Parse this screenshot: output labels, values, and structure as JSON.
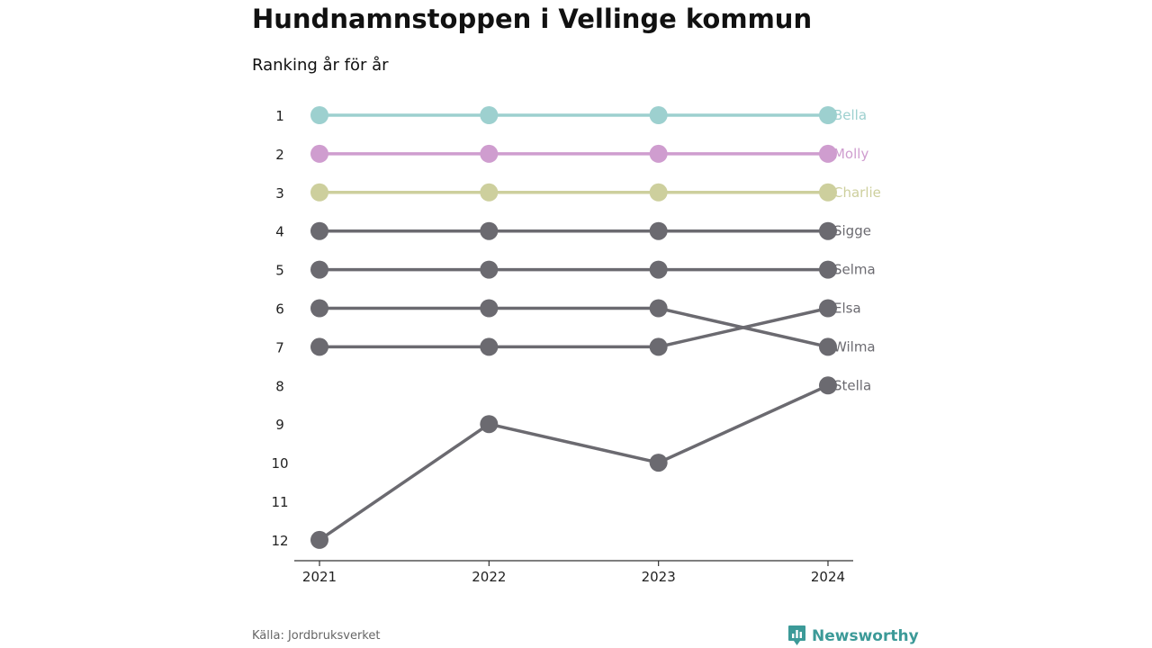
{
  "title": "Hundnamnstoppen i Vellinge kommun",
  "subtitle": "Ranking år för år",
  "source": "Källa: Jordbruksverket",
  "brand": {
    "name": "Newsworthy",
    "icon": "newsworthy-logo-icon",
    "color": "#3c9a98"
  },
  "chart_data": {
    "type": "line",
    "subtype": "bump",
    "x": [
      "2021",
      "2022",
      "2023",
      "2024"
    ],
    "y_ticks": [
      "1",
      "2",
      "3",
      "4",
      "5",
      "6",
      "7",
      "8",
      "9",
      "10",
      "11",
      "12"
    ],
    "y_range": [
      1,
      12
    ],
    "y_reversed": true,
    "grid": false,
    "legend": "direct labels at right end of lines",
    "series": [
      {
        "name": "Bella",
        "values": [
          1,
          1,
          1,
          1
        ],
        "color": "#9dd0cf"
      },
      {
        "name": "Molly",
        "values": [
          2,
          2,
          2,
          2
        ],
        "color": "#cf9dcf"
      },
      {
        "name": "Charlie",
        "values": [
          3,
          3,
          3,
          3
        ],
        "color": "#cdcf9d"
      },
      {
        "name": "Sigge",
        "values": [
          4,
          4,
          4,
          4
        ],
        "color": "#6b6a70"
      },
      {
        "name": "Selma",
        "values": [
          5,
          5,
          5,
          5
        ],
        "color": "#6b6a70"
      },
      {
        "name": "Elsa",
        "values": [
          7,
          7,
          7,
          6
        ],
        "color": "#6b6a70"
      },
      {
        "name": "Wilma",
        "values": [
          6,
          6,
          6,
          7
        ],
        "color": "#6b6a70"
      },
      {
        "name": "Stella",
        "values": [
          12,
          9,
          10,
          8
        ],
        "color": "#6b6a70"
      }
    ]
  }
}
